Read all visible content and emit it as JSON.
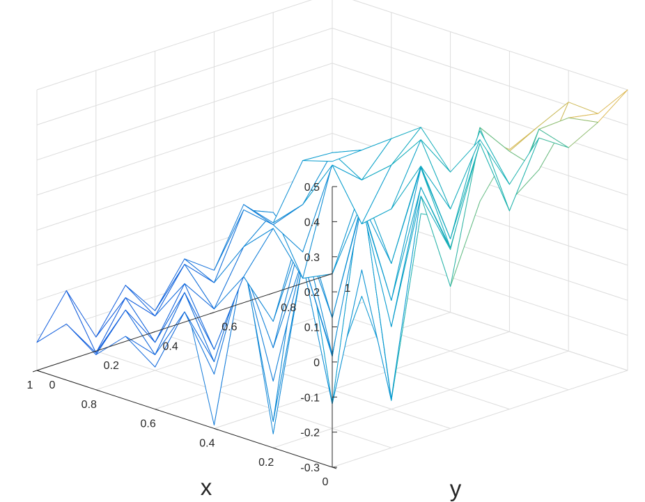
{
  "chart_data": {
    "type": "mesh",
    "colormap": "parula",
    "xlabel": "x",
    "ylabel": "y",
    "zlabel": "",
    "xlim": [
      0,
      1
    ],
    "ylim": [
      0,
      1
    ],
    "zlim": [
      -0.3,
      0.5
    ],
    "x_ticks": [
      "0",
      "0.2",
      "0.4",
      "0.6",
      "0.8",
      "1"
    ],
    "y_ticks": [
      "0",
      "0.2",
      "0.4",
      "0.6",
      "0.8",
      "1"
    ],
    "z_ticks": [
      "-0.3",
      "-0.2",
      "-0.1",
      "0",
      "0.1",
      "0.2",
      "0.3",
      "0.4",
      "0.5"
    ],
    "grid": true,
    "x": [
      0,
      0.1,
      0.2,
      0.3,
      0.4,
      0.5,
      0.6,
      0.7,
      0.8,
      0.9,
      1
    ],
    "y": [
      0,
      0.1,
      0.2,
      0.3,
      0.4,
      0.5,
      0.6,
      0.7,
      0.8,
      0.9,
      1
    ],
    "z": [
      [
        0.15,
        0.16,
        -0.1,
        0.34,
        0.3,
        0.32,
        0.44,
        0.48,
        0.52,
        0.46,
        0.5
      ],
      [
        0.34,
        -0.1,
        0.18,
        -0.22,
        0.4,
        0.05,
        0.45,
        0.38,
        0.3,
        0.42,
        0.38
      ],
      [
        -0.26,
        0.2,
        -0.23,
        0.36,
        -0.27,
        0.28,
        0.1,
        0.42,
        0.18,
        0.36,
        0.28
      ],
      [
        0.22,
        -0.28,
        0.28,
        -0.15,
        0.3,
        -0.12,
        0.25,
        0.05,
        0.32,
        0.1,
        0.28
      ],
      [
        -0.29,
        0.15,
        -0.22,
        0.1,
        -0.2,
        0.2,
        -0.1,
        0.25,
        0.02,
        0.3,
        0.12
      ],
      [
        0.05,
        -0.2,
        0.08,
        -0.18,
        0.12,
        -0.15,
        0.15,
        -0.05,
        0.2,
        0.05,
        0.22
      ],
      [
        -0.18,
        -0.05,
        -0.22,
        0.02,
        -0.16,
        0.1,
        -0.08,
        0.14,
        0.05,
        0.22,
        0.1
      ],
      [
        -0.12,
        -0.2,
        -0.05,
        -0.24,
        -0.06,
        0.05,
        -0.12,
        0.18,
        -0.02,
        0.12,
        0.2
      ],
      [
        -0.2,
        -0.1,
        -0.22,
        -0.08,
        -0.18,
        -0.03,
        0.04,
        -0.1,
        0.12,
        0.05,
        0.14
      ],
      [
        -0.14,
        -0.25,
        -0.12,
        -0.2,
        -0.08,
        -0.16,
        0.02,
        -0.05,
        -0.02,
        0.1,
        0.08
      ],
      [
        -0.22,
        -0.1,
        -0.26,
        -0.14,
        -0.24,
        -0.12,
        -0.18,
        -0.02,
        -0.1,
        0.05,
        0.02
      ]
    ]
  }
}
